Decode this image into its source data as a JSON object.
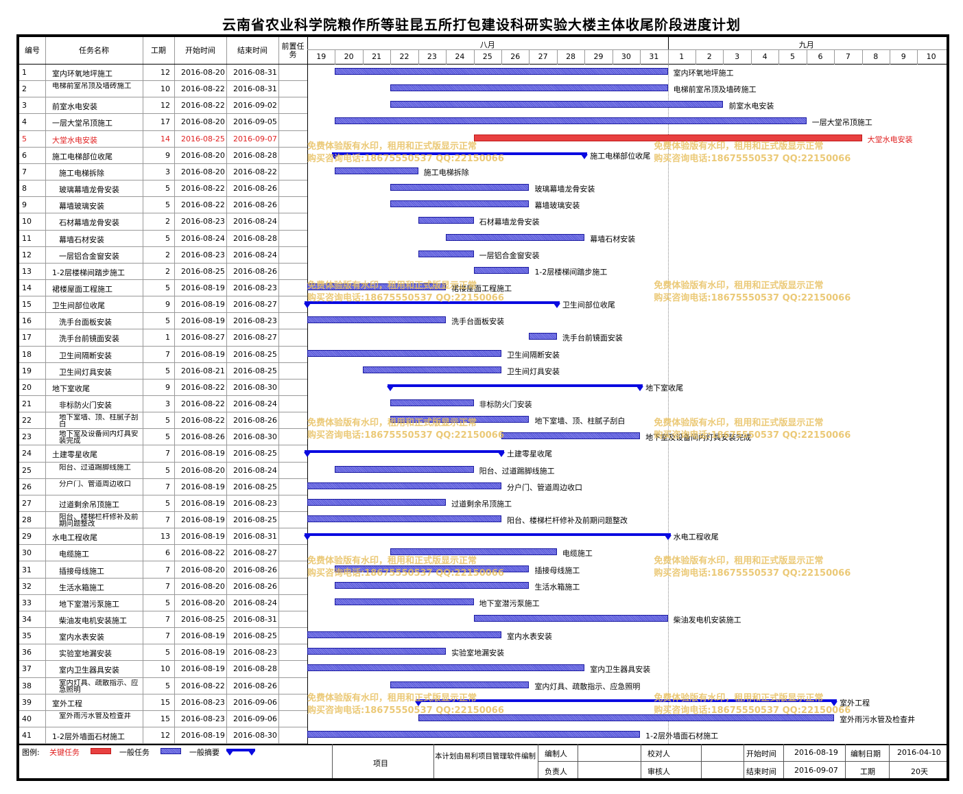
{
  "title": "云南省农业科学院粮作所等驻昆五所打包建设科研实验大楼主体收尾阶段进度计划",
  "headers": {
    "id": "编号",
    "name": "任务名称",
    "duration": "工期",
    "start": "开始时间",
    "end": "结束时间",
    "pred": "前置任务"
  },
  "months": [
    {
      "label": "八月"
    },
    {
      "label": "九月"
    }
  ],
  "days": [
    "19",
    "20",
    "21",
    "22",
    "23",
    "24",
    "25",
    "26",
    "27",
    "28",
    "29",
    "30",
    "31",
    "1",
    "2",
    "3",
    "4",
    "5",
    "6",
    "7",
    "8",
    "9",
    "10"
  ],
  "colors": {
    "normal": "#4e4ed8",
    "critical": "#e84040",
    "summary": "#0a0ae0",
    "critical_text": "#e02020"
  },
  "watermark": {
    "line1": "免费体验版有水印，租用和正式版显示正常",
    "line2": "购买咨询电话:18675550537 QQ:22150066"
  },
  "chart_data": {
    "type": "gantt",
    "title": "云南省农业科学院粮作所等驻昆五所打包建设科研实验大楼主体收尾阶段进度计划",
    "x_range": [
      "2016-08-19",
      "2016-09-10"
    ],
    "tasks": [
      {
        "id": "1",
        "name": "室内环氧地坪施工",
        "duration": "12",
        "start": "2016-08-20",
        "end": "2016-08-31",
        "kind": "normal"
      },
      {
        "id": "2",
        "name": "电梯前室吊顶及墙砖施工",
        "duration": "10",
        "start": "2016-08-22",
        "end": "2016-08-31",
        "kind": "normal",
        "wrap": true
      },
      {
        "id": "3",
        "name": "前室水电安装",
        "duration": "12",
        "start": "2016-08-22",
        "end": "2016-09-02",
        "kind": "normal"
      },
      {
        "id": "4",
        "name": "一层大堂吊顶施工",
        "duration": "17",
        "start": "2016-08-20",
        "end": "2016-09-05",
        "kind": "normal"
      },
      {
        "id": "5",
        "name": "大堂水电安装",
        "duration": "14",
        "start": "2016-08-25",
        "end": "2016-09-07",
        "kind": "critical"
      },
      {
        "id": "6",
        "name": "施工电梯部位收尾",
        "duration": "9",
        "start": "2016-08-20",
        "end": "2016-08-28",
        "kind": "summary"
      },
      {
        "id": "7",
        "name": "施工电梯拆除",
        "duration": "3",
        "start": "2016-08-20",
        "end": "2016-08-22",
        "kind": "normal",
        "indent": true
      },
      {
        "id": "8",
        "name": "玻璃幕墙龙骨安装",
        "duration": "5",
        "start": "2016-08-22",
        "end": "2016-08-26",
        "kind": "normal",
        "indent": true
      },
      {
        "id": "9",
        "name": "幕墙玻璃安装",
        "duration": "5",
        "start": "2016-08-22",
        "end": "2016-08-26",
        "kind": "normal",
        "indent": true
      },
      {
        "id": "10",
        "name": "石材幕墙龙骨安装",
        "duration": "2",
        "start": "2016-08-23",
        "end": "2016-08-24",
        "kind": "normal",
        "indent": true
      },
      {
        "id": "11",
        "name": "幕墙石材安装",
        "duration": "5",
        "start": "2016-08-24",
        "end": "2016-08-28",
        "kind": "normal",
        "indent": true
      },
      {
        "id": "12",
        "name": "一层铝合金窗安装",
        "duration": "2",
        "start": "2016-08-23",
        "end": "2016-08-24",
        "kind": "normal",
        "indent": true
      },
      {
        "id": "13",
        "name": "1-2层楼梯间踏步施工",
        "duration": "2",
        "start": "2016-08-25",
        "end": "2016-08-26",
        "kind": "normal"
      },
      {
        "id": "14",
        "name": "裙楼屋面工程施工",
        "duration": "5",
        "start": "2016-08-19",
        "end": "2016-08-23",
        "kind": "normal"
      },
      {
        "id": "15",
        "name": "卫生间部位收尾",
        "duration": "9",
        "start": "2016-08-19",
        "end": "2016-08-27",
        "kind": "summary"
      },
      {
        "id": "16",
        "name": "洗手台面板安装",
        "duration": "5",
        "start": "2016-08-19",
        "end": "2016-08-23",
        "kind": "normal",
        "indent": true
      },
      {
        "id": "17",
        "name": "洗手台前镜面安装",
        "duration": "1",
        "start": "2016-08-27",
        "end": "2016-08-27",
        "kind": "normal",
        "indent": true
      },
      {
        "id": "18",
        "name": "卫生间隔断安装",
        "duration": "7",
        "start": "2016-08-19",
        "end": "2016-08-25",
        "kind": "normal",
        "indent": true
      },
      {
        "id": "19",
        "name": "卫生间灯具安装",
        "duration": "5",
        "start": "2016-08-21",
        "end": "2016-08-25",
        "kind": "normal",
        "indent": true
      },
      {
        "id": "20",
        "name": "地下室收尾",
        "duration": "9",
        "start": "2016-08-22",
        "end": "2016-08-30",
        "kind": "summary"
      },
      {
        "id": "21",
        "name": "非标防火门安装",
        "duration": "3",
        "start": "2016-08-22",
        "end": "2016-08-24",
        "kind": "normal",
        "indent": true
      },
      {
        "id": "22",
        "name": "地下室墙、顶、柱腻子刮白",
        "duration": "5",
        "start": "2016-08-22",
        "end": "2016-08-26",
        "kind": "normal",
        "indent": true,
        "wrap": true
      },
      {
        "id": "23",
        "name": "地下室及设备间内灯具安装完成",
        "duration": "5",
        "start": "2016-08-26",
        "end": "2016-08-30",
        "kind": "normal",
        "indent": true,
        "wrap": true
      },
      {
        "id": "24",
        "name": "土建零星收尾",
        "duration": "7",
        "start": "2016-08-19",
        "end": "2016-08-25",
        "kind": "summary"
      },
      {
        "id": "25",
        "name": "阳台、过道踢脚线施工",
        "duration": "5",
        "start": "2016-08-20",
        "end": "2016-08-24",
        "kind": "normal",
        "indent": true,
        "wrap": true
      },
      {
        "id": "26",
        "name": "分户门、管道周边收口",
        "duration": "7",
        "start": "2016-08-19",
        "end": "2016-08-25",
        "kind": "normal",
        "indent": true,
        "wrap": true
      },
      {
        "id": "27",
        "name": "过道剩余吊顶施工",
        "duration": "5",
        "start": "2016-08-19",
        "end": "2016-08-23",
        "kind": "normal",
        "indent": true
      },
      {
        "id": "28",
        "name": "阳台、楼梯栏杆修补及前期问题整改",
        "duration": "7",
        "start": "2016-08-19",
        "end": "2016-08-25",
        "kind": "normal",
        "indent": true,
        "wrap": true
      },
      {
        "id": "29",
        "name": "水电工程收尾",
        "duration": "13",
        "start": "2016-08-19",
        "end": "2016-08-31",
        "kind": "summary"
      },
      {
        "id": "30",
        "name": "电缆施工",
        "duration": "6",
        "start": "2016-08-22",
        "end": "2016-08-27",
        "kind": "normal",
        "indent": true
      },
      {
        "id": "31",
        "name": "插接母线施工",
        "duration": "7",
        "start": "2016-08-20",
        "end": "2016-08-26",
        "kind": "normal",
        "indent": true
      },
      {
        "id": "32",
        "name": "生活水箱施工",
        "duration": "7",
        "start": "2016-08-20",
        "end": "2016-08-26",
        "kind": "normal",
        "indent": true
      },
      {
        "id": "33",
        "name": "地下室潜污泵施工",
        "duration": "5",
        "start": "2016-08-20",
        "end": "2016-08-24",
        "kind": "normal",
        "indent": true
      },
      {
        "id": "34",
        "name": "柴油发电机安装施工",
        "duration": "7",
        "start": "2016-08-25",
        "end": "2016-08-31",
        "kind": "normal",
        "indent": true
      },
      {
        "id": "35",
        "name": "室内水表安装",
        "duration": "7",
        "start": "2016-08-19",
        "end": "2016-08-25",
        "kind": "normal",
        "indent": true
      },
      {
        "id": "36",
        "name": "实验室地漏安装",
        "duration": "5",
        "start": "2016-08-19",
        "end": "2016-08-23",
        "kind": "normal",
        "indent": true
      },
      {
        "id": "37",
        "name": "室内卫生器具安装",
        "duration": "10",
        "start": "2016-08-19",
        "end": "2016-08-28",
        "kind": "normal",
        "indent": true
      },
      {
        "id": "38",
        "name": "室内灯具、疏散指示、应急照明",
        "duration": "5",
        "start": "2016-08-22",
        "end": "2016-08-26",
        "kind": "normal",
        "indent": true,
        "wrap": true
      },
      {
        "id": "39",
        "name": "室外工程",
        "duration": "15",
        "start": "2016-08-23",
        "end": "2016-09-06",
        "kind": "summary"
      },
      {
        "id": "40",
        "name": "室外雨污水管及检查井",
        "duration": "15",
        "start": "2016-08-23",
        "end": "2016-09-06",
        "kind": "normal",
        "indent": true,
        "wrap": true
      },
      {
        "id": "41",
        "name": "1-2层外墙面石材施工",
        "duration": "12",
        "start": "2016-08-19",
        "end": "2016-08-30",
        "kind": "normal"
      }
    ]
  },
  "footer": {
    "legend_label": "图例:",
    "legend_critical": "关键任务",
    "legend_normal": "一般任务",
    "legend_summary": "一般摘要",
    "project_label": "项目",
    "software_note": "本计划由易利项目管理软件编制",
    "editor_label": "编制人",
    "checker_label": "校对人",
    "owner_label": "负责人",
    "reviewer_label": "审核人",
    "start_label": "开始时间",
    "start_value": "2016-08-19",
    "end_label": "结束时间",
    "end_value": "2016-09-07",
    "date_label": "编制日期",
    "date_value": "2016-04-10",
    "duration_label": "工期",
    "duration_value": "20天"
  }
}
